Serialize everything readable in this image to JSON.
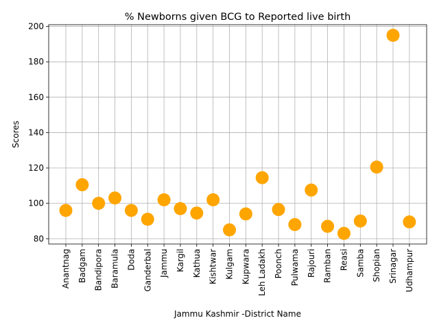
{
  "chart_data": {
    "type": "scatter",
    "title": "% Newborns given BCG to Reported live birth",
    "xlabel": "Jammu Kashmir -District Name",
    "ylabel": "Scores",
    "categories": [
      "Anantnag",
      "Badgam",
      "Bandipora",
      "Baramula",
      "Doda",
      "Ganderbal",
      "Jammu",
      "Kargil",
      "Kathua",
      "Kishtwar",
      "Kulgam",
      "Kupwara",
      "Leh Ladakh",
      "Poonch",
      "Pulwama",
      "Rajouri",
      "Ramban",
      "Reasi",
      "Samba",
      "Shopian",
      "Srinagar",
      "Udhampur"
    ],
    "values": [
      96,
      110.5,
      100,
      103,
      96,
      91,
      102,
      97,
      94.5,
      102,
      85,
      94,
      114.5,
      96.5,
      88,
      107.5,
      87,
      83,
      90,
      120.5,
      195,
      89.5
    ],
    "ylim": [
      77,
      201
    ],
    "yticks": [
      80,
      100,
      120,
      140,
      160,
      180,
      200
    ],
    "grid": true,
    "marker_color": "#ffa500"
  }
}
